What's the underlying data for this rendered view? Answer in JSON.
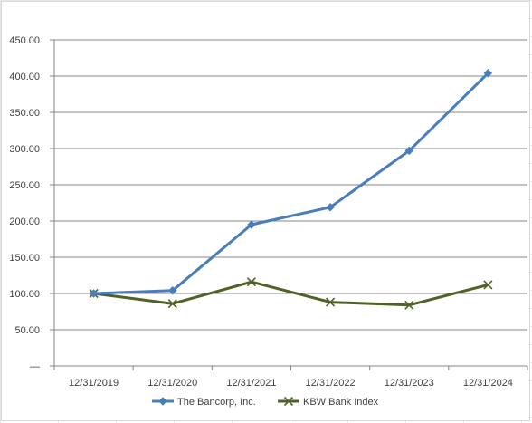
{
  "chart_data": {
    "type": "line",
    "title": "",
    "xlabel": "",
    "ylabel": "",
    "categories": [
      "12/31/2019",
      "12/31/2020",
      "12/31/2021",
      "12/31/2022",
      "12/31/2023",
      "12/31/2024"
    ],
    "ylim": [
      0,
      450
    ],
    "y_ticks": [
      0,
      50,
      100,
      150,
      200,
      250,
      300,
      350,
      400,
      450
    ],
    "y_tick_labels": [
      "—",
      "50.00",
      "100.00",
      "150.00",
      "200.00",
      "250.00",
      "300.00",
      "350.00",
      "400.00",
      "450.00"
    ],
    "grid": true,
    "legend_position": "bottom",
    "series": [
      {
        "name": "The Bancorp, Inc.",
        "values": [
          100,
          104,
          195,
          219,
          297,
          404
        ],
        "color": "#4a7ebb",
        "marker": "diamond-icon"
      },
      {
        "name": "KBW Bank Index",
        "values": [
          100,
          86,
          116,
          88,
          84,
          112
        ],
        "color": "#4f6228",
        "marker": "x-icon"
      }
    ]
  }
}
